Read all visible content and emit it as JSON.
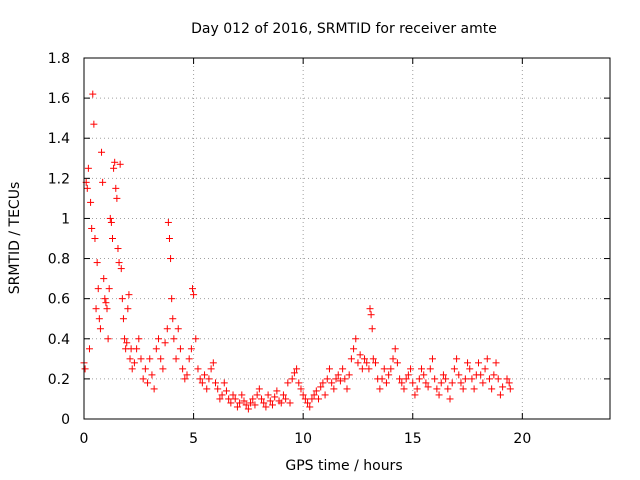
{
  "chart_data": {
    "type": "scatter",
    "title": "Day 012 of 2016, SRMTID for receiver amte",
    "xlabel": "GPS time / hours",
    "ylabel": "SRMTID / TECUs",
    "xlim": [
      0,
      24
    ],
    "ylim": [
      0,
      1.8
    ],
    "xticks": [
      0,
      5,
      10,
      15,
      20
    ],
    "yticks": [
      0,
      0.2,
      0.4,
      0.6,
      0.8,
      1,
      1.2,
      1.4,
      1.6,
      1.8
    ],
    "ytick_labels": [
      "0",
      "0.2",
      "0.4",
      "0.6",
      "0.8",
      "1",
      "1.2",
      "1.4",
      "1.6",
      "1.8"
    ],
    "grid": true,
    "marker": "+",
    "series_color": "#ff0000",
    "series": [
      {
        "points": [
          [
            0.0,
            0.28
          ],
          [
            0.05,
            0.25
          ],
          [
            0.1,
            1.18
          ],
          [
            0.15,
            1.15
          ],
          [
            0.2,
            1.25
          ],
          [
            0.25,
            0.35
          ],
          [
            0.3,
            1.08
          ],
          [
            0.35,
            0.95
          ],
          [
            0.4,
            1.62
          ],
          [
            0.45,
            1.47
          ],
          [
            0.5,
            0.9
          ],
          [
            0.55,
            0.55
          ],
          [
            0.6,
            0.78
          ],
          [
            0.65,
            0.65
          ],
          [
            0.7,
            0.5
          ],
          [
            0.75,
            0.45
          ],
          [
            0.8,
            1.33
          ],
          [
            0.85,
            1.18
          ],
          [
            0.9,
            0.7
          ],
          [
            0.95,
            0.6
          ],
          [
            1.0,
            0.58
          ],
          [
            1.05,
            0.55
          ],
          [
            1.1,
            0.4
          ],
          [
            1.15,
            0.65
          ],
          [
            1.2,
            1.0
          ],
          [
            1.25,
            0.98
          ],
          [
            1.3,
            0.9
          ],
          [
            1.35,
            1.25
          ],
          [
            1.4,
            1.28
          ],
          [
            1.45,
            1.15
          ],
          [
            1.5,
            1.1
          ],
          [
            1.55,
            0.85
          ],
          [
            1.6,
            0.78
          ],
          [
            1.65,
            1.27
          ],
          [
            1.7,
            0.75
          ],
          [
            1.75,
            0.6
          ],
          [
            1.8,
            0.5
          ],
          [
            1.85,
            0.4
          ],
          [
            1.9,
            0.35
          ],
          [
            1.95,
            0.38
          ],
          [
            2.0,
            0.55
          ],
          [
            2.05,
            0.62
          ],
          [
            2.1,
            0.3
          ],
          [
            2.15,
            0.35
          ],
          [
            2.2,
            0.25
          ],
          [
            2.3,
            0.28
          ],
          [
            2.4,
            0.35
          ],
          [
            2.5,
            0.4
          ],
          [
            2.6,
            0.3
          ],
          [
            2.7,
            0.2
          ],
          [
            2.8,
            0.25
          ],
          [
            2.9,
            0.18
          ],
          [
            3.0,
            0.3
          ],
          [
            3.1,
            0.22
          ],
          [
            3.2,
            0.15
          ],
          [
            3.3,
            0.35
          ],
          [
            3.4,
            0.4
          ],
          [
            3.5,
            0.3
          ],
          [
            3.6,
            0.25
          ],
          [
            3.7,
            0.38
          ],
          [
            3.8,
            0.45
          ],
          [
            3.85,
            0.98
          ],
          [
            3.9,
            0.9
          ],
          [
            3.95,
            0.8
          ],
          [
            4.0,
            0.6
          ],
          [
            4.05,
            0.5
          ],
          [
            4.1,
            0.4
          ],
          [
            4.2,
            0.3
          ],
          [
            4.3,
            0.45
          ],
          [
            4.4,
            0.35
          ],
          [
            4.5,
            0.25
          ],
          [
            4.6,
            0.2
          ],
          [
            4.7,
            0.22
          ],
          [
            4.8,
            0.3
          ],
          [
            4.9,
            0.35
          ],
          [
            4.95,
            0.65
          ],
          [
            5.0,
            0.62
          ],
          [
            5.1,
            0.4
          ],
          [
            5.2,
            0.25
          ],
          [
            5.3,
            0.2
          ],
          [
            5.4,
            0.18
          ],
          [
            5.5,
            0.22
          ],
          [
            5.6,
            0.15
          ],
          [
            5.7,
            0.2
          ],
          [
            5.8,
            0.25
          ],
          [
            5.9,
            0.28
          ],
          [
            6.0,
            0.18
          ],
          [
            6.1,
            0.15
          ],
          [
            6.2,
            0.1
          ],
          [
            6.3,
            0.12
          ],
          [
            6.4,
            0.18
          ],
          [
            6.5,
            0.14
          ],
          [
            6.6,
            0.1
          ],
          [
            6.7,
            0.08
          ],
          [
            6.8,
            0.12
          ],
          [
            6.9,
            0.1
          ],
          [
            7.0,
            0.06
          ],
          [
            7.1,
            0.08
          ],
          [
            7.2,
            0.12
          ],
          [
            7.3,
            0.09
          ],
          [
            7.4,
            0.07
          ],
          [
            7.5,
            0.05
          ],
          [
            7.6,
            0.08
          ],
          [
            7.7,
            0.1
          ],
          [
            7.8,
            0.07
          ],
          [
            7.9,
            0.12
          ],
          [
            8.0,
            0.15
          ],
          [
            8.1,
            0.1
          ],
          [
            8.2,
            0.08
          ],
          [
            8.3,
            0.06
          ],
          [
            8.4,
            0.12
          ],
          [
            8.5,
            0.09
          ],
          [
            8.6,
            0.07
          ],
          [
            8.7,
            0.11
          ],
          [
            8.8,
            0.14
          ],
          [
            8.9,
            0.09
          ],
          [
            9.0,
            0.08
          ],
          [
            9.1,
            0.12
          ],
          [
            9.2,
            0.1
          ],
          [
            9.3,
            0.18
          ],
          [
            9.4,
            0.08
          ],
          [
            9.5,
            0.2
          ],
          [
            9.6,
            0.23
          ],
          [
            9.7,
            0.25
          ],
          [
            9.8,
            0.18
          ],
          [
            9.9,
            0.15
          ],
          [
            10.0,
            0.12
          ],
          [
            10.1,
            0.1
          ],
          [
            10.2,
            0.08
          ],
          [
            10.3,
            0.06
          ],
          [
            10.4,
            0.1
          ],
          [
            10.5,
            0.12
          ],
          [
            10.6,
            0.14
          ],
          [
            10.7,
            0.1
          ],
          [
            10.8,
            0.16
          ],
          [
            10.9,
            0.18
          ],
          [
            11.0,
            0.12
          ],
          [
            11.1,
            0.2
          ],
          [
            11.2,
            0.25
          ],
          [
            11.3,
            0.18
          ],
          [
            11.4,
            0.15
          ],
          [
            11.5,
            0.2
          ],
          [
            11.6,
            0.22
          ],
          [
            11.7,
            0.19
          ],
          [
            11.8,
            0.25
          ],
          [
            11.9,
            0.2
          ],
          [
            12.0,
            0.15
          ],
          [
            12.1,
            0.22
          ],
          [
            12.2,
            0.3
          ],
          [
            12.3,
            0.35
          ],
          [
            12.4,
            0.4
          ],
          [
            12.5,
            0.28
          ],
          [
            12.6,
            0.32
          ],
          [
            12.7,
            0.25
          ],
          [
            12.8,
            0.3
          ],
          [
            12.9,
            0.28
          ],
          [
            13.0,
            0.25
          ],
          [
            13.05,
            0.55
          ],
          [
            13.1,
            0.52
          ],
          [
            13.15,
            0.45
          ],
          [
            13.2,
            0.3
          ],
          [
            13.3,
            0.28
          ],
          [
            13.4,
            0.2
          ],
          [
            13.5,
            0.15
          ],
          [
            13.6,
            0.2
          ],
          [
            13.7,
            0.25
          ],
          [
            13.8,
            0.18
          ],
          [
            13.9,
            0.22
          ],
          [
            14.0,
            0.25
          ],
          [
            14.1,
            0.3
          ],
          [
            14.2,
            0.35
          ],
          [
            14.3,
            0.28
          ],
          [
            14.4,
            0.2
          ],
          [
            14.5,
            0.18
          ],
          [
            14.6,
            0.15
          ],
          [
            14.7,
            0.2
          ],
          [
            14.8,
            0.22
          ],
          [
            14.9,
            0.25
          ],
          [
            15.0,
            0.18
          ],
          [
            15.1,
            0.12
          ],
          [
            15.2,
            0.15
          ],
          [
            15.3,
            0.2
          ],
          [
            15.4,
            0.25
          ],
          [
            15.5,
            0.22
          ],
          [
            15.6,
            0.18
          ],
          [
            15.7,
            0.16
          ],
          [
            15.8,
            0.25
          ],
          [
            15.9,
            0.3
          ],
          [
            16.0,
            0.2
          ],
          [
            16.1,
            0.15
          ],
          [
            16.2,
            0.12
          ],
          [
            16.3,
            0.18
          ],
          [
            16.4,
            0.22
          ],
          [
            16.5,
            0.2
          ],
          [
            16.6,
            0.15
          ],
          [
            16.7,
            0.1
          ],
          [
            16.8,
            0.18
          ],
          [
            16.9,
            0.25
          ],
          [
            17.0,
            0.3
          ],
          [
            17.1,
            0.22
          ],
          [
            17.2,
            0.18
          ],
          [
            17.3,
            0.15
          ],
          [
            17.4,
            0.2
          ],
          [
            17.5,
            0.28
          ],
          [
            17.6,
            0.25
          ],
          [
            17.7,
            0.2
          ],
          [
            17.8,
            0.15
          ],
          [
            17.9,
            0.22
          ],
          [
            18.0,
            0.28
          ],
          [
            18.1,
            0.22
          ],
          [
            18.2,
            0.18
          ],
          [
            18.3,
            0.25
          ],
          [
            18.4,
            0.3
          ],
          [
            18.5,
            0.2
          ],
          [
            18.6,
            0.15
          ],
          [
            18.7,
            0.22
          ],
          [
            18.8,
            0.28
          ],
          [
            18.9,
            0.2
          ],
          [
            19.0,
            0.12
          ],
          [
            19.1,
            0.16
          ],
          [
            19.3,
            0.2
          ],
          [
            19.4,
            0.18
          ],
          [
            19.45,
            0.15
          ]
        ]
      }
    ]
  }
}
